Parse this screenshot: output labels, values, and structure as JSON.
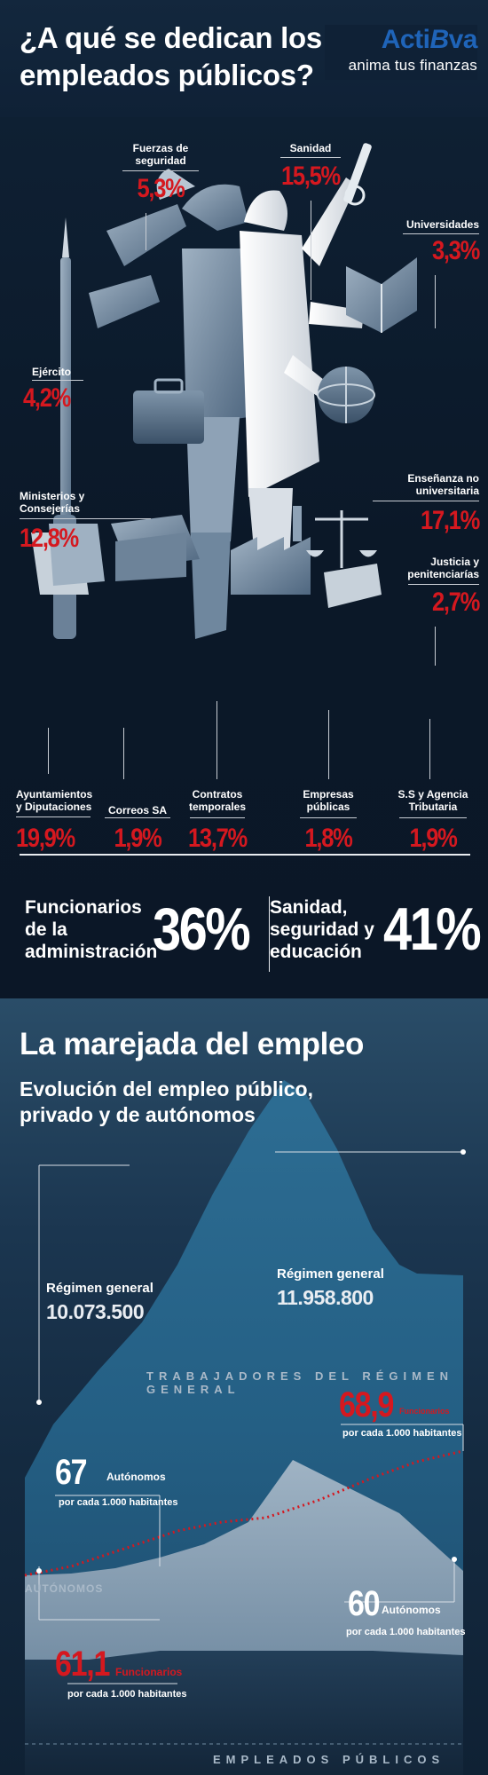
{
  "header": {
    "title_line1": "¿A qué se dedican los",
    "title_line2": "empleados públicos?",
    "brand_name_a": "Acti",
    "brand_name_b": "B",
    "brand_name_c": "va",
    "brand_tagline": "anima tus finanzas"
  },
  "categories": [
    {
      "id": "fuerzas",
      "label_l1": "Fuerzas de",
      "label_l2": "seguridad",
      "value": "5,3%"
    },
    {
      "id": "sanidad",
      "label_l1": "Sanidad",
      "label_l2": "",
      "value": "15,5%"
    },
    {
      "id": "universidades",
      "label_l1": "Universidades",
      "label_l2": "",
      "value": "3,3%"
    },
    {
      "id": "ejercito",
      "label_l1": "Ejército",
      "label_l2": "",
      "value": "4,2%"
    },
    {
      "id": "ministerios",
      "label_l1": "Ministerios y",
      "label_l2": "Consejerías",
      "value": "12,8%"
    },
    {
      "id": "ensenanza",
      "label_l1": "Enseñanza no",
      "label_l2": "universitaria",
      "value": "17,1%"
    },
    {
      "id": "justicia",
      "label_l1": "Justicia y",
      "label_l2": "penitenciarías",
      "value": "2,7%"
    },
    {
      "id": "ayuntamientos",
      "label_l1": "Ayuntamientos",
      "label_l2": "y Diputaciones",
      "value": "19,9%"
    },
    {
      "id": "correos",
      "label_l1": "Correos SA",
      "label_l2": "",
      "value": "1,9%"
    },
    {
      "id": "contratos",
      "label_l1": "Contratos",
      "label_l2": "temporales",
      "value": "13,7%"
    },
    {
      "id": "empresas",
      "label_l1": "Empresas",
      "label_l2": "públicas",
      "value": "1,8%"
    },
    {
      "id": "ss",
      "label_l1": "S.S y Agencia",
      "label_l2": "Tributaria",
      "value": "1,9%"
    }
  ],
  "summary": {
    "left_l1": "Funcionarios",
    "left_l2": "de la",
    "left_l3": "administración",
    "left_value": "36%",
    "right_l1": "Sanidad,",
    "right_l2": "seguridad y",
    "right_l3": "educación",
    "right_value": "41%"
  },
  "section2": {
    "title": "La marejada del empleo",
    "subtitle_l1": "Evolución del empleo público,",
    "subtitle_l2": "privado y de autónomos",
    "rg_left_label": "Régimen general",
    "rg_left_value": "10.073.500",
    "rg_right_label": "Régimen general",
    "rg_right_value": "11.958.800",
    "band_rg": "TRABAJADORES DEL RÉGIMEN GENERAL",
    "band_aut": "AUTÓNOMOS",
    "band_pub": "EMPLEADOS PÚBLICOS",
    "func_right_value": "68,9",
    "func_right_word": "Funcionarios",
    "per1000_a": "por cada 1.000 habitantes",
    "aut_left_value": "67",
    "aut_left_word": "Autónomos",
    "per1000_b": "por cada 1.000 habitantes",
    "aut_right_value": "60",
    "aut_right_word": "Autónomos",
    "per1000_c": "por cada 1.000 habitantes",
    "func_left_value": "61,1",
    "func_left_word": "Funcionarios",
    "per1000_d": "por cada 1.000 habitantes"
  },
  "colors": {
    "accent_red": "#d5181f",
    "brand_blue": "#1f64b8",
    "dark_bg": "#0c1a2c"
  }
}
